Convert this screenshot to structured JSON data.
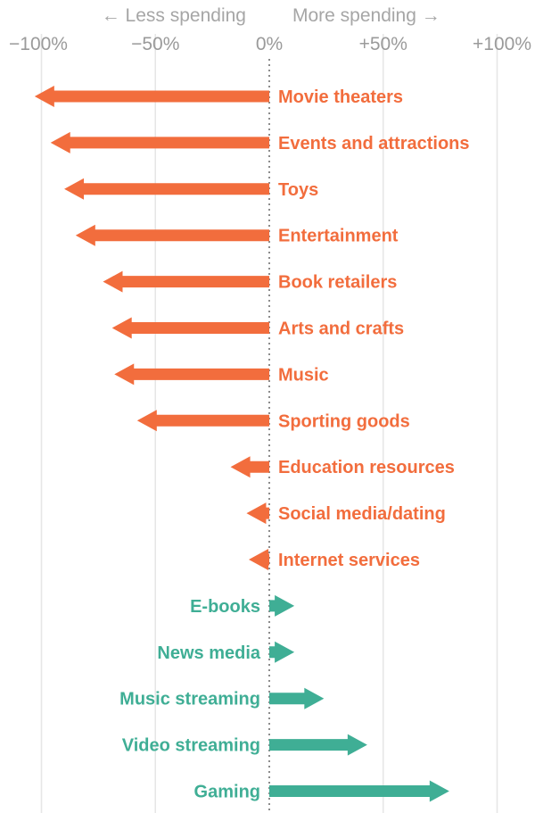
{
  "chart_data": {
    "type": "bar",
    "direction_labels": {
      "less": "← Less spending",
      "more": "More spending →"
    },
    "x_ticks": [
      {
        "value": -100,
        "label": "−100%"
      },
      {
        "value": -50,
        "label": "−50%"
      },
      {
        "value": 0,
        "label": "0%"
      },
      {
        "value": 50,
        "label": "+50%"
      },
      {
        "value": 100,
        "label": "+100%"
      }
    ],
    "xlim": [
      -100,
      100
    ],
    "grid": true,
    "categories": [
      "Movie theaters",
      "Events and attractions",
      "Toys",
      "Entertainment",
      "Book retailers",
      "Arts and crafts",
      "Music",
      "Sporting goods",
      "Education resources",
      "Social media/dating",
      "Internet services",
      "E-books",
      "News media",
      "Music streaming",
      "Video streaming",
      "Gaming"
    ],
    "values": [
      -103,
      -96,
      -90,
      -85,
      -73,
      -69,
      -68,
      -58,
      -17,
      -10,
      -9,
      11,
      11,
      24,
      43,
      79
    ],
    "colors": {
      "negative": "#f26d3d",
      "positive": "#3fae95",
      "grid": "#e6e6e6",
      "zero_line": "#8c8c8c",
      "tick": "#9a9a9a"
    }
  }
}
